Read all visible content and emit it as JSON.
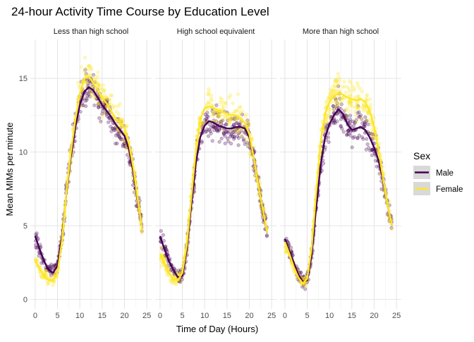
{
  "chart_data": {
    "type": "scatter",
    "title": "24-hour Activity Time Course by Education Level",
    "xlabel": "Time of Day (Hours)",
    "ylabel": "Mean MIMs per minute",
    "xlim": [
      0,
      25
    ],
    "ylim": [
      0,
      17
    ],
    "x_ticks": [
      0,
      5,
      10,
      15,
      20,
      25
    ],
    "y_ticks": [
      0,
      5,
      10,
      15
    ],
    "grid": true,
    "legend": {
      "title": "Sex",
      "position": "right",
      "entries": [
        {
          "name": "Male",
          "color": "#440154"
        },
        {
          "name": "Female",
          "color": "#FDE725"
        }
      ]
    },
    "panels": [
      {
        "label": "Less than high school",
        "series": [
          {
            "name": "Male",
            "smooth_x": [
              0,
              1,
              2,
              3,
              4,
              5,
              6,
              7,
              8,
              9,
              10,
              11,
              12,
              13,
              14,
              15,
              16,
              17,
              18,
              19,
              20,
              21,
              22,
              23,
              24
            ],
            "smooth_y": [
              4.3,
              3.4,
              2.6,
              2.0,
              1.8,
              2.3,
              4.3,
              7.2,
              9.7,
              11.7,
              13.2,
              14.1,
              14.4,
              14.2,
              13.7,
              13.2,
              12.8,
              12.4,
              11.9,
              11.5,
              11.1,
              10.2,
              8.6,
              6.6,
              4.8
            ]
          },
          {
            "name": "Female",
            "smooth_x": [
              0,
              1,
              2,
              3,
              4,
              5,
              6,
              7,
              8,
              9,
              10,
              11,
              12,
              13,
              14,
              15,
              16,
              17,
              18,
              19,
              20,
              21,
              22,
              23,
              24
            ],
            "smooth_y": [
              2.6,
              2.1,
              1.6,
              1.3,
              1.3,
              1.8,
              4.0,
              7.3,
              10.0,
              12.2,
              14.0,
              15.0,
              15.1,
              14.7,
              14.2,
              13.7,
              13.3,
              12.8,
              12.3,
              12.0,
              11.6,
              10.6,
              8.9,
              6.7,
              4.7
            ]
          }
        ]
      },
      {
        "label": "High school equivalent",
        "series": [
          {
            "name": "Male",
            "smooth_x": [
              0,
              1,
              2,
              3,
              4,
              5,
              6,
              7,
              8,
              9,
              10,
              11,
              12,
              13,
              14,
              15,
              16,
              17,
              18,
              19,
              20,
              21,
              22,
              23,
              24
            ],
            "smooth_y": [
              4.3,
              3.4,
              2.6,
              2.0,
              1.5,
              1.6,
              3.4,
              6.4,
              9.2,
              11.0,
              11.8,
              12.1,
              12.0,
              11.8,
              11.7,
              11.6,
              11.6,
              11.7,
              11.7,
              11.6,
              11.0,
              9.6,
              7.9,
              6.0,
              4.5
            ]
          },
          {
            "name": "Female",
            "smooth_x": [
              0,
              1,
              2,
              3,
              4,
              5,
              6,
              7,
              8,
              9,
              10,
              11,
              12,
              13,
              14,
              15,
              16,
              17,
              18,
              19,
              20,
              21,
              22,
              23,
              24
            ],
            "smooth_y": [
              3.1,
              2.4,
              1.8,
              1.4,
              1.3,
              1.8,
              3.7,
              6.9,
              10.0,
              12.2,
              13.0,
              13.1,
              13.0,
              12.8,
              12.7,
              12.6,
              12.5,
              12.5,
              12.3,
              12.0,
              11.2,
              9.6,
              7.8,
              6.1,
              4.5
            ]
          }
        ]
      },
      {
        "label": "More than high school",
        "series": [
          {
            "name": "Male",
            "smooth_x": [
              0,
              1,
              2,
              3,
              4,
              5,
              6,
              7,
              8,
              9,
              10,
              11,
              12,
              13,
              14,
              15,
              16,
              17,
              18,
              19,
              20,
              21,
              22,
              23,
              24
            ],
            "smooth_y": [
              4.1,
              3.3,
              2.5,
              1.7,
              1.2,
              1.3,
              3.0,
              6.2,
              9.1,
              11.0,
              11.9,
              12.5,
              12.9,
              12.6,
              11.9,
              11.5,
              11.6,
              11.7,
              11.5,
              11.0,
              10.3,
              9.4,
              8.1,
              6.4,
              5.0
            ]
          },
          {
            "name": "Female",
            "smooth_x": [
              0,
              1,
              2,
              3,
              4,
              5,
              6,
              7,
              8,
              9,
              10,
              11,
              12,
              13,
              14,
              15,
              16,
              17,
              18,
              19,
              20,
              21,
              22,
              23,
              24
            ],
            "smooth_y": [
              3.9,
              3.1,
              2.2,
              1.5,
              1.1,
              1.4,
              3.5,
              7.2,
              10.7,
              12.6,
              13.4,
              13.8,
              14.0,
              13.9,
              13.7,
              13.6,
              13.5,
              13.6,
              13.4,
              12.8,
              11.7,
              10.1,
              8.2,
              6.4,
              5.0
            ]
          }
        ]
      }
    ]
  }
}
